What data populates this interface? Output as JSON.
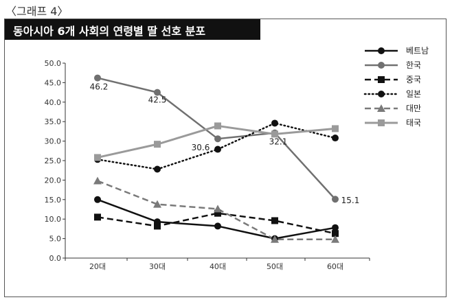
{
  "figure": {
    "label": "〈그래프 4〉",
    "title": "동아시아 6개 사회의 연령별 딸 선호 분포"
  },
  "chart_data": {
    "type": "line",
    "title": "동아시아 6개 사회의 연령별 딸 선호 분포",
    "xlabel": "",
    "ylabel": "",
    "categories": [
      "20대",
      "30대",
      "40대",
      "50대",
      "60대"
    ],
    "ylim": [
      0,
      50
    ],
    "yticks": [
      "0.0",
      "5.0",
      "10.0",
      "15.0",
      "20.0",
      "25.0",
      "30.0",
      "35.0",
      "40.0",
      "45.0",
      "50.0"
    ],
    "legend_position": "top-right",
    "grid": false,
    "series": [
      {
        "name": "베트남",
        "values": [
          15.0,
          9.3,
          8.2,
          5.0,
          7.8
        ],
        "color": "#111111",
        "dash": "solid",
        "marker": "circle",
        "width": 2.5
      },
      {
        "name": "한국",
        "values": [
          46.2,
          42.5,
          30.6,
          32.1,
          15.1
        ],
        "color": "#707070",
        "dash": "solid",
        "marker": "circle",
        "width": 2.5
      },
      {
        "name": "중국",
        "values": [
          10.5,
          8.2,
          11.5,
          9.6,
          6.3
        ],
        "color": "#111111",
        "dash": "dashed",
        "marker": "square",
        "width": 2.5
      },
      {
        "name": "일본",
        "values": [
          25.3,
          22.8,
          27.9,
          34.6,
          30.8
        ],
        "color": "#111111",
        "dash": "dotted",
        "marker": "circle",
        "width": 2.5
      },
      {
        "name": "대만",
        "values": [
          19.8,
          13.8,
          12.6,
          4.8,
          4.8
        ],
        "color": "#7a7a7a",
        "dash": "dashed",
        "marker": "triangle",
        "width": 2.5
      },
      {
        "name": "태국",
        "values": [
          25.8,
          29.2,
          33.9,
          31.8,
          33.2
        ],
        "color": "#9a9a9a",
        "dash": "solid",
        "marker": "square",
        "width": 3
      }
    ],
    "annotations": [
      {
        "series": 1,
        "index": 0,
        "text": "46.2"
      },
      {
        "series": 1,
        "index": 1,
        "text": "42.5"
      },
      {
        "series": 1,
        "index": 2,
        "text": "30.6"
      },
      {
        "series": 1,
        "index": 3,
        "text": "32.1"
      },
      {
        "series": 1,
        "index": 4,
        "text": "15.1"
      }
    ]
  }
}
